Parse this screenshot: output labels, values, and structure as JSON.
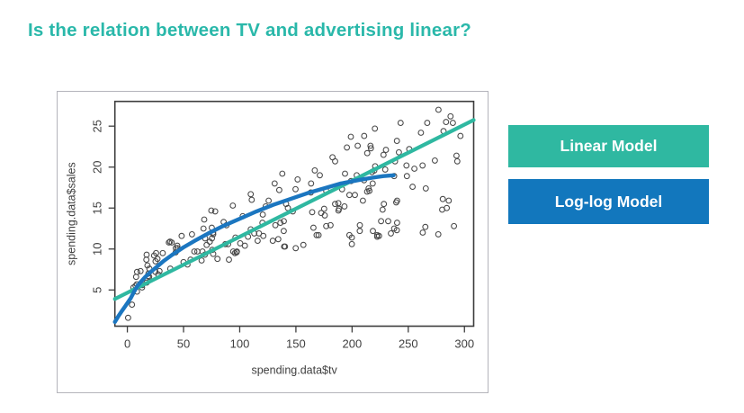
{
  "title": {
    "text": "Is the relation between TV and advertising linear?",
    "color": "#2ab8aa"
  },
  "figure": {
    "border_color": "#b4b4bb",
    "background": "#ffffff"
  },
  "legend": {
    "items": [
      {
        "label": "Linear Model",
        "color": "#2fb8a1"
      },
      {
        "label": "Log-log Model",
        "color": "#1277bd"
      }
    ]
  },
  "chart_data": {
    "type": "scatter",
    "title": "",
    "xlabel": "spending.data$tv",
    "ylabel": "spending.data$sales",
    "x_ticks": [
      0,
      50,
      100,
      150,
      200,
      250,
      300
    ],
    "y_ticks": [
      5,
      10,
      15,
      20,
      25
    ],
    "xlim": [
      -11.1,
      308.2
    ],
    "ylim": [
      0.58,
      28.02
    ],
    "grid": false,
    "axis_color": "#3f3f3f",
    "box_color": "#3c3c3c",
    "point_color": "#474747",
    "points": [
      [
        230.1,
        22.1
      ],
      [
        44.5,
        10.4
      ],
      [
        17.2,
        9.3
      ],
      [
        151.5,
        18.5
      ],
      [
        180.8,
        12.9
      ],
      [
        8.7,
        7.2
      ],
      [
        57.5,
        11.8
      ],
      [
        120.2,
        13.2
      ],
      [
        8.6,
        4.8
      ],
      [
        199.8,
        10.6
      ],
      [
        66.1,
        8.6
      ],
      [
        214.7,
        17.4
      ],
      [
        23.8,
        9.2
      ],
      [
        97.5,
        9.7
      ],
      [
        204.1,
        19
      ],
      [
        195.4,
        22.4
      ],
      [
        67.8,
        12.5
      ],
      [
        281.4,
        24.4
      ],
      [
        69.2,
        11.3
      ],
      [
        147.3,
        14.6
      ],
      [
        218.4,
        18
      ],
      [
        237.4,
        12.5
      ],
      [
        13.2,
        5.6
      ],
      [
        228.3,
        15.5
      ],
      [
        62.3,
        9.7
      ],
      [
        262.9,
        12
      ],
      [
        142.9,
        15
      ],
      [
        240.1,
        15.9
      ],
      [
        248.8,
        18.9
      ],
      [
        70.6,
        10.5
      ],
      [
        292.9,
        21.4
      ],
      [
        112.9,
        11.9
      ],
      [
        97.2,
        9.6
      ],
      [
        265.6,
        17.4
      ],
      [
        95.7,
        9.5
      ],
      [
        290.7,
        12.8
      ],
      [
        266.9,
        25.4
      ],
      [
        74.7,
        14.7
      ],
      [
        43.1,
        10.1
      ],
      [
        228,
        21.5
      ],
      [
        202.5,
        16.6
      ],
      [
        177,
        17.1
      ],
      [
        293.6,
        20.7
      ],
      [
        206.9,
        12.9
      ],
      [
        25.1,
        8.5
      ],
      [
        175.1,
        14.9
      ],
      [
        89.7,
        10.6
      ],
      [
        239.9,
        23.2
      ],
      [
        227.2,
        14.8
      ],
      [
        66.9,
        9.7
      ],
      [
        199.8,
        11.4
      ],
      [
        100.4,
        10.7
      ],
      [
        216.4,
        22.6
      ],
      [
        182.6,
        21.2
      ],
      [
        262.7,
        20.2
      ],
      [
        198.9,
        23.7
      ],
      [
        7.3,
        5.5
      ],
      [
        136.2,
        13.2
      ],
      [
        210.8,
        23.8
      ],
      [
        210.7,
        18.4
      ],
      [
        53.5,
        8.1
      ],
      [
        261.3,
        24.2
      ],
      [
        239.3,
        15.7
      ],
      [
        102.7,
        14
      ],
      [
        131.1,
        18
      ],
      [
        69,
        9.3
      ],
      [
        31.5,
        9.5
      ],
      [
        139.3,
        13.4
      ],
      [
        237.4,
        18.9
      ],
      [
        216.8,
        22.3
      ],
      [
        199.1,
        18.3
      ],
      [
        109.8,
        12.4
      ],
      [
        26.8,
        8.8
      ],
      [
        129.4,
        11
      ],
      [
        213.4,
        17
      ],
      [
        16.9,
        8.7
      ],
      [
        27.5,
        6.9
      ],
      [
        120.5,
        14.2
      ],
      [
        5.4,
        5.3
      ],
      [
        116,
        11
      ],
      [
        76.4,
        11.8
      ],
      [
        239.8,
        12.3
      ],
      [
        75.3,
        11.3
      ],
      [
        68.4,
        13.6
      ],
      [
        213.5,
        21.7
      ],
      [
        193.2,
        15.2
      ],
      [
        76.3,
        12
      ],
      [
        110.7,
        16
      ],
      [
        88.3,
        12.9
      ],
      [
        109.8,
        16.7
      ],
      [
        134.3,
        11.2
      ],
      [
        28.6,
        7.3
      ],
      [
        217.7,
        19.4
      ],
      [
        250.9,
        22.2
      ],
      [
        107.4,
        11.5
      ],
      [
        163.3,
        16.9
      ],
      [
        197.6,
        11.7
      ],
      [
        184.9,
        15.5
      ],
      [
        289.7,
        25.4
      ],
      [
        135.2,
        17.2
      ],
      [
        222.4,
        11.7
      ],
      [
        296.4,
        23.8
      ],
      [
        280.2,
        14.8
      ],
      [
        187.9,
        14.7
      ],
      [
        238.2,
        20.7
      ],
      [
        137.9,
        19.2
      ],
      [
        25,
        7.2
      ],
      [
        90.4,
        8.7
      ],
      [
        13.1,
        5.3
      ],
      [
        255.4,
        19.8
      ],
      [
        225.8,
        13.4
      ],
      [
        241.7,
        21.8
      ],
      [
        175.7,
        14.1
      ],
      [
        209.6,
        15.9
      ],
      [
        78.2,
        14.6
      ],
      [
        75.1,
        12.6
      ],
      [
        139.2,
        12.2
      ],
      [
        76.4,
        9.4
      ],
      [
        125.7,
        15.9
      ],
      [
        19.4,
        6.6
      ],
      [
        141.3,
        15.5
      ],
      [
        18.8,
        7
      ],
      [
        224,
        11.6
      ],
      [
        123.1,
        15.2
      ],
      [
        229.5,
        19.7
      ],
      [
        87.2,
        10.6
      ],
      [
        7.8,
        6.6
      ],
      [
        80.2,
        8.8
      ],
      [
        220.3,
        24.7
      ],
      [
        59.6,
        9.7
      ],
      [
        0.7,
        1.6
      ],
      [
        265.2,
        12.7
      ],
      [
        8.4,
        5.7
      ],
      [
        219.8,
        19.6
      ],
      [
        36.9,
        10.8
      ],
      [
        48.3,
        11.6
      ],
      [
        25.6,
        9.5
      ],
      [
        273.7,
        20.8
      ],
      [
        43,
        9.6
      ],
      [
        184.9,
        20.7
      ],
      [
        73.4,
        10.9
      ],
      [
        193.7,
        19.2
      ],
      [
        220.5,
        20.1
      ],
      [
        104.6,
        10.4
      ],
      [
        96.2,
        11.4
      ],
      [
        140.3,
        10.3
      ],
      [
        240.1,
        13.2
      ],
      [
        243.2,
        25.4
      ],
      [
        38,
        10.9
      ],
      [
        44.7,
        10.1
      ],
      [
        280.7,
        16.1
      ],
      [
        121,
        11.6
      ],
      [
        197.6,
        16.6
      ],
      [
        171.3,
        19
      ],
      [
        187.8,
        15.6
      ],
      [
        4.1,
        3.2
      ],
      [
        93.9,
        15.3
      ],
      [
        149.8,
        10.1
      ],
      [
        11.7,
        7.3
      ],
      [
        131.7,
        12.9
      ],
      [
        172.5,
        14.4
      ],
      [
        85.7,
        13.3
      ],
      [
        188.4,
        14.9
      ],
      [
        163.5,
        18
      ],
      [
        117.2,
        11.9
      ],
      [
        234.5,
        11.9
      ],
      [
        17.9,
        8
      ],
      [
        206.8,
        12.2
      ],
      [
        215.4,
        17.1
      ],
      [
        284.3,
        15
      ],
      [
        50,
        8.4
      ],
      [
        164.5,
        14.5
      ],
      [
        19.6,
        7.6
      ],
      [
        168.4,
        11.7
      ],
      [
        222.4,
        11.5
      ],
      [
        276.9,
        27
      ],
      [
        248.4,
        20.2
      ],
      [
        170.2,
        11.7
      ],
      [
        276.7,
        11.8
      ],
      [
        165.6,
        12.6
      ],
      [
        156.6,
        10.5
      ],
      [
        218.5,
        12.2
      ],
      [
        56.2,
        8.7
      ],
      [
        287.6,
        26.2
      ],
      [
        253.8,
        17.6
      ],
      [
        205,
        22.6
      ],
      [
        139.5,
        10.3
      ],
      [
        191.1,
        17.3
      ],
      [
        286,
        15.9
      ],
      [
        18.7,
        6.7
      ],
      [
        39.5,
        10.8
      ],
      [
        75.5,
        9.9
      ],
      [
        17.2,
        5.9
      ],
      [
        166.8,
        19.6
      ],
      [
        149.7,
        17.3
      ],
      [
        38.2,
        7.6
      ],
      [
        94.2,
        9.7
      ],
      [
        177,
        12.8
      ],
      [
        283.6,
        25.5
      ],
      [
        232.1,
        13.4
      ]
    ],
    "series": [
      {
        "name": "Linear Model",
        "type": "line",
        "color": "#2fb8a1",
        "stroke_width": 4.2,
        "points": [
          [
            -11.1,
            3.9
          ],
          [
            308.2,
            25.75
          ]
        ]
      },
      {
        "name": "Log-log Model",
        "type": "curve",
        "color": "#1b76c0",
        "stroke_width": 4.4,
        "points": [
          [
            -11.1,
            1.1
          ],
          [
            -8,
            1.8
          ],
          [
            -5,
            2.4
          ],
          [
            -2,
            3.0
          ],
          [
            0,
            3.4
          ],
          [
            3,
            4.0
          ],
          [
            6,
            4.8
          ],
          [
            9,
            5.5
          ],
          [
            12,
            6.0
          ],
          [
            16,
            6.6
          ],
          [
            20,
            7.1
          ],
          [
            26,
            7.8
          ],
          [
            32,
            8.5
          ],
          [
            40,
            9.3
          ],
          [
            50,
            10.2
          ],
          [
            60,
            11.0
          ],
          [
            72,
            11.9
          ],
          [
            85,
            12.8
          ],
          [
            100,
            13.7
          ],
          [
            115,
            14.6
          ],
          [
            130,
            15.4
          ],
          [
            145,
            16.1
          ],
          [
            160,
            16.8
          ],
          [
            175,
            17.4
          ],
          [
            190,
            18.0
          ],
          [
            205,
            18.4
          ],
          [
            218,
            18.7
          ],
          [
            228,
            18.9
          ],
          [
            237,
            19.0
          ]
        ]
      }
    ],
    "legend_position": "right"
  }
}
